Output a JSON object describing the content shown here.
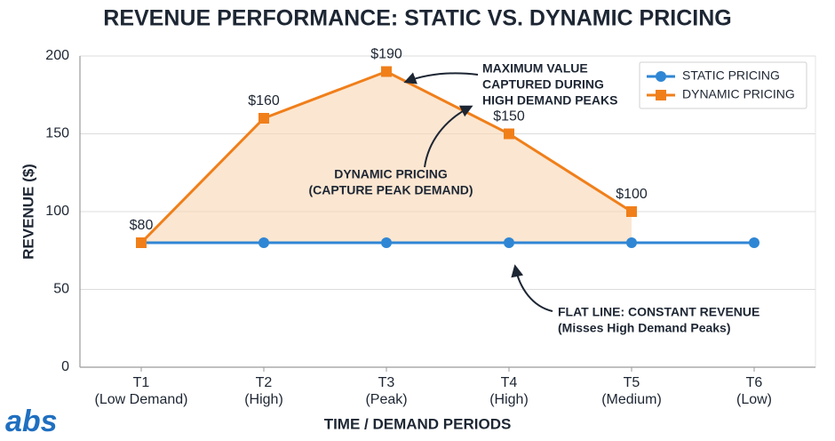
{
  "chart_data": {
    "type": "line",
    "title": "REVENUE PERFORMANCE: STATIC VS. DYNAMIC PRICING",
    "x_label": "TIME / DEMAND PERIODS",
    "y_label": "REVENUE ($)",
    "categories": [
      "T1",
      "T2",
      "T3",
      "T4",
      "T5",
      "T6"
    ],
    "category_details": [
      "(Low Demand)",
      "(High)",
      "(Peak)",
      "(High)",
      "(Medium)",
      "(Low)"
    ],
    "series": [
      {
        "name": "STATIC PRICING",
        "color": "#2f86d4",
        "marker": "circle",
        "values": [
          80,
          80,
          80,
          80,
          80,
          80
        ]
      },
      {
        "name": "DYNAMIC PRICING",
        "color": "#f07f1a",
        "marker": "square",
        "values": [
          80,
          160,
          190,
          150,
          100,
          null
        ],
        "value_labels": [
          "$80",
          "$160",
          "$190",
          "$150",
          "$100",
          null
        ]
      }
    ],
    "ylim": [
      0,
      200
    ],
    "yticks": [
      0,
      50,
      100,
      150,
      200
    ],
    "grid": true,
    "legend": "upper right",
    "annotations": [
      {
        "lines": [
          "MAXIMUM VALUE",
          "CAPTURED DURING",
          "HIGH DEMAND PEAKS"
        ]
      },
      {
        "lines": [
          "DYNAMIC PRICING",
          "(CAPTURE PEAK DEMAND)"
        ]
      },
      {
        "lines": [
          "FLAT LINE: CONSTANT REVENUE",
          "(Misses High Demand Peaks)"
        ]
      }
    ],
    "logo": "abs"
  }
}
